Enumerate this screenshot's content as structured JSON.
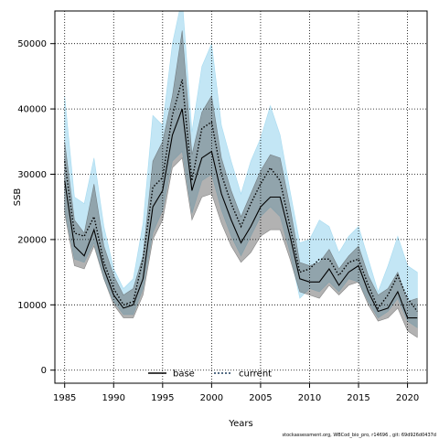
{
  "chart_data": {
    "type": "line",
    "title": "",
    "xlabel": "Years",
    "ylabel": "SSB",
    "xlim": [
      1984,
      2022
    ],
    "ylim": [
      -2000,
      55000
    ],
    "x_ticks": [
      1985,
      1990,
      1995,
      2000,
      2005,
      2010,
      2015,
      2020
    ],
    "y_ticks": [
      0,
      10000,
      20000,
      30000,
      40000,
      50000
    ],
    "grid": true,
    "legend_position": "bottom-center",
    "x": [
      1985,
      1986,
      1987,
      1988,
      1989,
      1990,
      1991,
      1992,
      1993,
      1994,
      1995,
      1996,
      1997,
      1998,
      1999,
      2000,
      2001,
      2002,
      2003,
      2004,
      2005,
      2006,
      2007,
      2008,
      2009,
      2010,
      2011,
      2012,
      2013,
      2014,
      2015,
      2016,
      2017,
      2018,
      2019,
      2020,
      2021
    ],
    "series": [
      {
        "name": "base",
        "color": "#000000",
        "line_style": "solid",
        "band_color": "#555555",
        "values": [
          29000,
          19000,
          17500,
          21500,
          15500,
          11500,
          9500,
          10000,
          14000,
          25000,
          27500,
          36000,
          40000,
          27500,
          32500,
          33500,
          27000,
          23000,
          19500,
          22000,
          25000,
          26500,
          26500,
          20500,
          14000,
          13500,
          13500,
          15500,
          13000,
          15000,
          16000,
          12000,
          9000,
          9500,
          12000,
          8000,
          8000
        ],
        "lower": [
          24000,
          16000,
          15500,
          19000,
          14000,
          10000,
          8000,
          8000,
          11500,
          20000,
          23000,
          31000,
          32500,
          23000,
          26500,
          27000,
          22500,
          19000,
          16500,
          18000,
          20500,
          21500,
          21500,
          17000,
          12000,
          11500,
          11000,
          13000,
          11500,
          13000,
          13500,
          10000,
          7500,
          8000,
          9500,
          6000,
          5000
        ],
        "upper": [
          35000,
          23000,
          21000,
          28500,
          19000,
          14500,
          11500,
          12500,
          17500,
          32000,
          35000,
          42000,
          52000,
          33000,
          39500,
          42000,
          32500,
          27500,
          23500,
          27000,
          30500,
          33000,
          32500,
          25000,
          16500,
          16000,
          16500,
          18500,
          15500,
          17500,
          19000,
          14500,
          11500,
          12500,
          15000,
          10500,
          11000
        ]
      },
      {
        "name": "current",
        "color": "#000000",
        "line_style": "dotted",
        "band_color": "#87ceeb",
        "values": [
          32000,
          21000,
          20500,
          23500,
          16500,
          12500,
          10000,
          10500,
          17000,
          28000,
          29500,
          39000,
          44500,
          29000,
          37000,
          38000,
          30000,
          25500,
          22000,
          25500,
          28500,
          31000,
          29000,
          22000,
          15000,
          15500,
          17000,
          17000,
          14500,
          16500,
          17000,
          13000,
          9500,
          11500,
          14500,
          11000,
          9000
        ],
        "lower": [
          24500,
          17000,
          16500,
          19500,
          14000,
          10500,
          8500,
          8500,
          12500,
          21000,
          24500,
          32000,
          33500,
          24000,
          29000,
          30000,
          24500,
          20500,
          17500,
          20500,
          23500,
          25000,
          23500,
          18000,
          11000,
          12500,
          12000,
          13500,
          12000,
          14000,
          13500,
          10500,
          8000,
          9000,
          11000,
          7500,
          6500
        ],
        "upper": [
          42000,
          26500,
          25500,
          32500,
          22000,
          15500,
          12500,
          14000,
          22500,
          39000,
          37500,
          50000,
          57000,
          36500,
          46500,
          50000,
          37500,
          32000,
          27000,
          32000,
          35500,
          40500,
          36000,
          27500,
          19500,
          20000,
          23000,
          22000,
          18000,
          20500,
          22000,
          17000,
          12000,
          16000,
          20500,
          16000,
          15000
        ]
      }
    ],
    "footer": "stockassessment.org, WBCod_bio_pro, r14696 , git: 69d926d0437d"
  }
}
